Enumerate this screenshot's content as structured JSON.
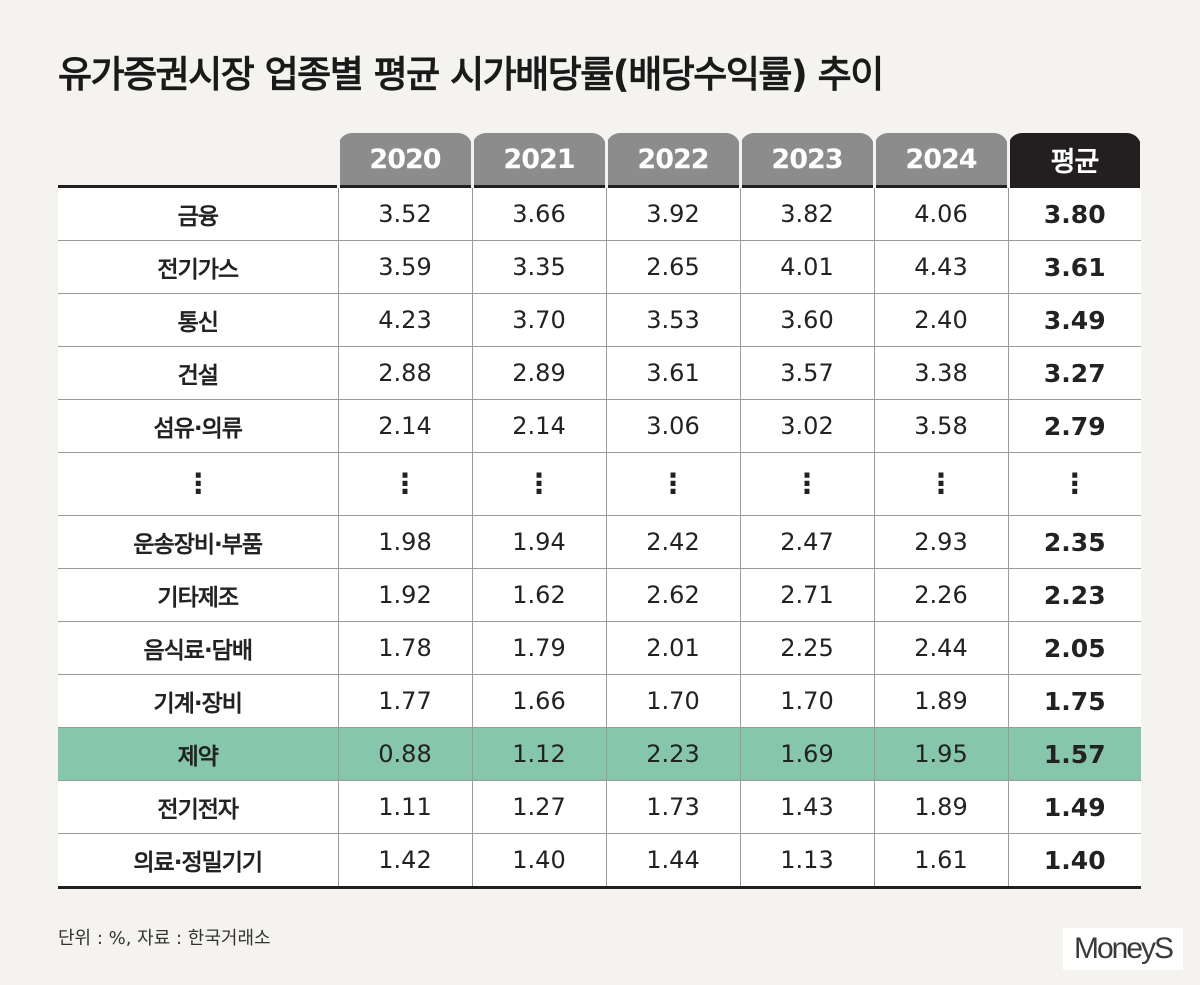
{
  "title": "유가증권시장 업종별 평균 시가배당률(배당수익률) 추이",
  "footnote": "단위 : %, 자료 : 한국거래소",
  "logo_text": "MoneyS",
  "colors": {
    "header": "#8c8c8c",
    "average_header": "#231f20",
    "highlight_row": "#86c7ab",
    "background": "#f4f3ef"
  },
  "chart_data": {
    "type": "table",
    "title": "유가증권시장 업종별 평균 시가배당률(배당수익률) 추이",
    "unit": "%",
    "source": "한국거래소",
    "columns": [
      "2020",
      "2021",
      "2022",
      "2023",
      "2024",
      "평균"
    ],
    "highlight_row": "제약",
    "rows": [
      {
        "label": "금융",
        "values": [
          "3.52",
          "3.66",
          "3.92",
          "3.82",
          "4.06",
          "3.80"
        ]
      },
      {
        "label": "전기가스",
        "values": [
          "3.59",
          "3.35",
          "2.65",
          "4.01",
          "4.43",
          "3.61"
        ]
      },
      {
        "label": "통신",
        "values": [
          "4.23",
          "3.70",
          "3.53",
          "3.60",
          "2.40",
          "3.49"
        ]
      },
      {
        "label": "건설",
        "values": [
          "2.88",
          "2.89",
          "3.61",
          "3.57",
          "3.38",
          "3.27"
        ]
      },
      {
        "label": "섬유·의류",
        "values": [
          "2.14",
          "2.14",
          "3.06",
          "3.02",
          "3.58",
          "2.79"
        ]
      },
      {
        "label": "⋮",
        "values": [
          "⋮",
          "⋮",
          "⋮",
          "⋮",
          "⋮",
          "⋮"
        ]
      },
      {
        "label": "운송장비·부품",
        "values": [
          "1.98",
          "1.94",
          "2.42",
          "2.47",
          "2.93",
          "2.35"
        ]
      },
      {
        "label": "기타제조",
        "values": [
          "1.92",
          "1.62",
          "2.62",
          "2.71",
          "2.26",
          "2.23"
        ]
      },
      {
        "label": "음식료·담배",
        "values": [
          "1.78",
          "1.79",
          "2.01",
          "2.25",
          "2.44",
          "2.05"
        ]
      },
      {
        "label": "기계·장비",
        "values": [
          "1.77",
          "1.66",
          "1.70",
          "1.70",
          "1.89",
          "1.75"
        ]
      },
      {
        "label": "제약",
        "values": [
          "0.88",
          "1.12",
          "2.23",
          "1.69",
          "1.95",
          "1.57"
        ]
      },
      {
        "label": "전기전자",
        "values": [
          "1.11",
          "1.27",
          "1.73",
          "1.43",
          "1.89",
          "1.49"
        ]
      },
      {
        "label": "의료·정밀기기",
        "values": [
          "1.42",
          "1.40",
          "1.44",
          "1.13",
          "1.61",
          "1.40"
        ]
      }
    ]
  }
}
